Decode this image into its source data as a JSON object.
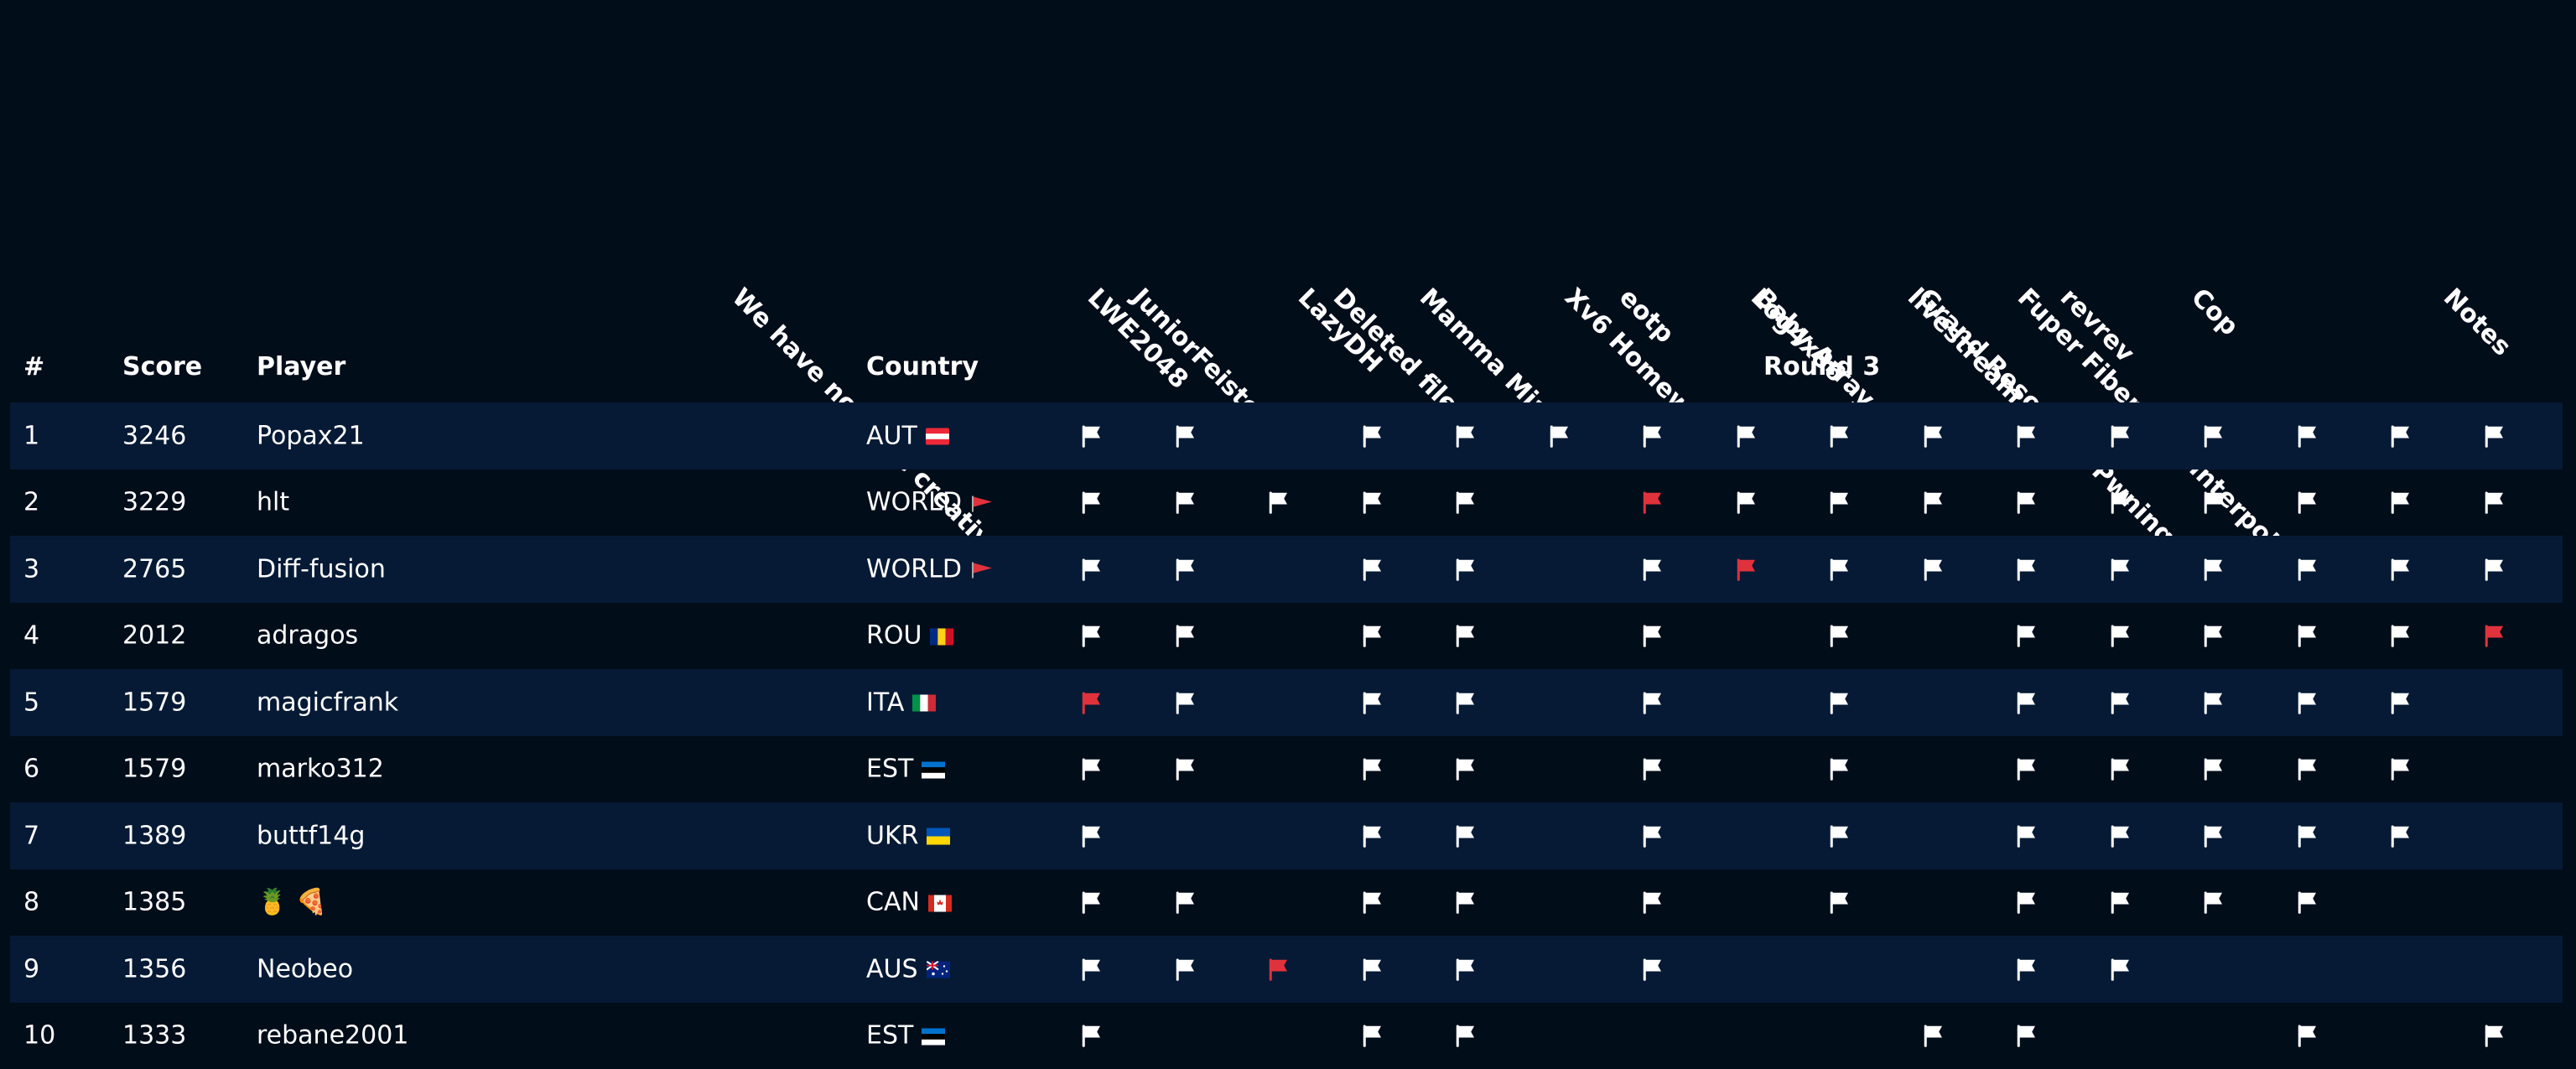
{
  "challenges": [
    "We have no more creativity",
    "LWE2048",
    "JuniorFeistel",
    "LazyDH",
    "Deleted file",
    "Mamma Mia",
    "eotp",
    "Xv6 Homework",
    "Log4x86",
    "Baby Array.xor",
    "livestream",
    "revrev",
    "Cop",
    "Grand Resort for Pwning Cats",
    "Fuper Fibernetic Interpolator",
    "Notes"
  ],
  "headers": {
    "rank": "#",
    "score": "Score",
    "player": "Player",
    "country": "Country",
    "round": "Round 3"
  },
  "colors": {
    "solved": "#ffffff",
    "first_blood": "#e0323c",
    "row_alt": "#061a35",
    "background": "#020d1a"
  },
  "rows": [
    {
      "rank": "1",
      "score": "3246",
      "player": "Popax21",
      "country": "AUT",
      "country_flag": "austria-flag",
      "solves": [
        1,
        1,
        0,
        1,
        1,
        1,
        1,
        1,
        1,
        1,
        1,
        1,
        1,
        1,
        1,
        1
      ]
    },
    {
      "rank": "2",
      "score": "3229",
      "player": "hlt",
      "country": "WORLD",
      "country_flag": "red-pennant-flag",
      "solves": [
        1,
        1,
        1,
        1,
        1,
        0,
        2,
        1,
        1,
        1,
        1,
        1,
        1,
        1,
        1,
        1
      ]
    },
    {
      "rank": "3",
      "score": "2765",
      "player": "Diff-fusion",
      "country": "WORLD",
      "country_flag": "red-pennant-flag",
      "solves": [
        1,
        1,
        0,
        1,
        1,
        0,
        1,
        2,
        1,
        1,
        1,
        1,
        1,
        1,
        1,
        1
      ]
    },
    {
      "rank": "4",
      "score": "2012",
      "player": "adragos",
      "country": "ROU",
      "country_flag": "romania-flag",
      "solves": [
        1,
        1,
        0,
        1,
        1,
        0,
        1,
        0,
        1,
        0,
        1,
        1,
        1,
        1,
        1,
        2
      ]
    },
    {
      "rank": "5",
      "score": "1579",
      "player": "magicfrank",
      "country": "ITA",
      "country_flag": "italy-flag",
      "solves": [
        2,
        1,
        0,
        1,
        1,
        0,
        1,
        0,
        1,
        0,
        1,
        1,
        1,
        1,
        1,
        0
      ]
    },
    {
      "rank": "6",
      "score": "1579",
      "player": "marko312",
      "country": "EST",
      "country_flag": "estonia-flag",
      "solves": [
        1,
        1,
        0,
        1,
        1,
        0,
        1,
        0,
        1,
        0,
        1,
        1,
        1,
        1,
        1,
        0
      ]
    },
    {
      "rank": "7",
      "score": "1389",
      "player": "buttf14g",
      "country": "UKR",
      "country_flag": "ukraine-flag",
      "solves": [
        1,
        0,
        0,
        1,
        1,
        0,
        1,
        0,
        1,
        0,
        1,
        1,
        1,
        1,
        1,
        0
      ]
    },
    {
      "rank": "8",
      "score": "1385",
      "player": "🍍 🍕",
      "country": "CAN",
      "country_flag": "canada-flag",
      "solves": [
        1,
        1,
        0,
        1,
        1,
        0,
        1,
        0,
        1,
        0,
        1,
        1,
        1,
        1,
        0,
        0
      ]
    },
    {
      "rank": "9",
      "score": "1356",
      "player": "Neobeo",
      "country": "AUS",
      "country_flag": "australia-flag",
      "solves": [
        1,
        1,
        2,
        1,
        1,
        0,
        1,
        0,
        0,
        0,
        1,
        1,
        0,
        0,
        0,
        0
      ]
    },
    {
      "rank": "10",
      "score": "1333",
      "player": "rebane2001",
      "country": "EST",
      "country_flag": "estonia-flag",
      "solves": [
        1,
        0,
        0,
        1,
        1,
        0,
        0,
        0,
        0,
        1,
        1,
        0,
        0,
        1,
        0,
        1
      ]
    }
  ]
}
